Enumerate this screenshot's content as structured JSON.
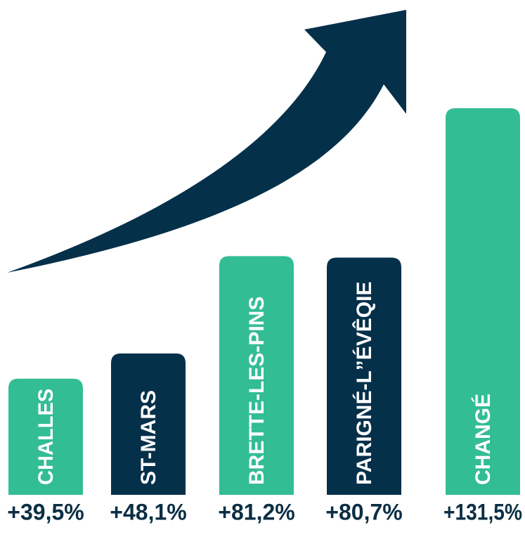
{
  "chart_data": {
    "type": "bar",
    "categories": [
      "CHALLES",
      "ST-MARS",
      "BRETTE-LES-PINS",
      "PARIGNÉ-L”ÉVÊQIE",
      "CHANGÉ"
    ],
    "values": [
      39.5,
      48.1,
      81.2,
      80.7,
      131.5
    ],
    "value_labels": [
      "+39,5%",
      "+48,1%",
      "+81,2%",
      "+80,7%",
      "+131,5%"
    ],
    "bar_colors": [
      "#33bd94",
      "#05304a",
      "#33bd94",
      "#05304a",
      "#33bd94"
    ],
    "value_label_color": "#0b2e43",
    "category_label_color": "#ffffff",
    "arrow_color": "#05304a",
    "arrow_icon": "trend-up-arrow-icon",
    "title": "",
    "xlabel": "",
    "ylabel": "",
    "grid": false,
    "legend": "none"
  }
}
